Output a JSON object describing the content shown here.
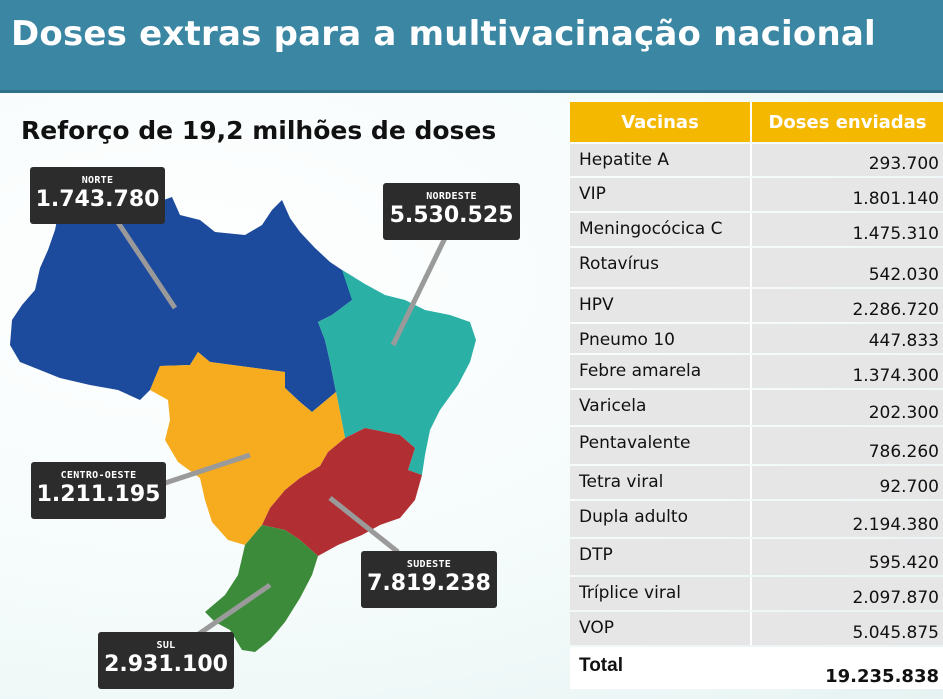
{
  "header": {
    "title": "Doses extras para a multivacinação nacional"
  },
  "map": {
    "subtitle": "Reforço de 19,2 milhões de doses",
    "regions": [
      {
        "key": "norte",
        "name": "NORTE",
        "value": "1.743.780",
        "color": "#1c4a9c"
      },
      {
        "key": "nordeste",
        "name": "NORDESTE",
        "value": "5.530.525",
        "color": "#2ab0a5"
      },
      {
        "key": "centro_oeste",
        "name": "CENTRO-OESTE",
        "value": "1.211.195",
        "color": "#f6ac1e"
      },
      {
        "key": "sudeste",
        "name": "SUDESTE",
        "value": "7.819.238",
        "color": "#b12f33"
      },
      {
        "key": "sul",
        "name": "SUL",
        "value": "2.931.100",
        "color": "#3c8b3a"
      }
    ]
  },
  "table": {
    "headers": [
      "Vacinas",
      "Doses enviadas"
    ],
    "rows": [
      {
        "vacina": "Hepatite A",
        "doses": "293.700"
      },
      {
        "vacina": "VIP",
        "doses": "1.801.140"
      },
      {
        "vacina": "Meningocócica C",
        "doses": "1.475.310"
      },
      {
        "vacina": "Rotavírus",
        "doses": "542.030"
      },
      {
        "vacina": "HPV",
        "doses": "2.286.720"
      },
      {
        "vacina": "Pneumo 10",
        "doses": "447.833"
      },
      {
        "vacina": "Febre amarela",
        "doses": "1.374.300"
      },
      {
        "vacina": "Varicela",
        "doses": "202.300"
      },
      {
        "vacina": "Pentavalente",
        "doses": "786.260"
      },
      {
        "vacina": "Tetra viral",
        "doses": "92.700"
      },
      {
        "vacina": "Dupla adulto",
        "doses": "2.194.380"
      },
      {
        "vacina": "DTP",
        "doses": "595.420"
      },
      {
        "vacina": "Tríplice viral",
        "doses": "2.097.870"
      },
      {
        "vacina": "VOP",
        "doses": "5.045.875"
      }
    ],
    "total": {
      "label": "Total",
      "value": "19.235.838"
    }
  }
}
